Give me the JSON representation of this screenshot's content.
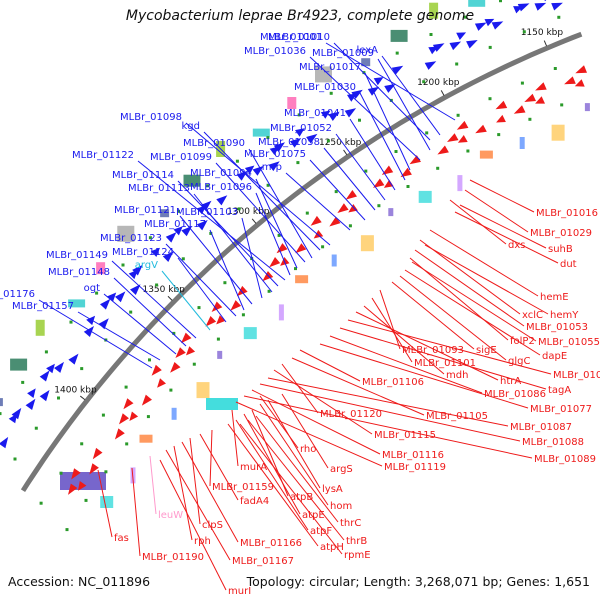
{
  "title": "Mycobacterium leprae Br4923, complete genome",
  "footer": {
    "accession": "Accession: NC_011896",
    "summary": "Topology: circular; Length: 3,268,071 bp; Genes: 1,651"
  },
  "colors": {
    "forward_strand": "#1a1aee",
    "reverse_strand": "#ee1a1a",
    "trna": "#22bbdd",
    "rrna": "#ff99cc",
    "backbone": "#777777",
    "tick": "#2a9a2a"
  },
  "ruler_ticks": [
    "1150 kbp",
    "1200 kbp",
    "1250 kbp",
    "1300 kbp",
    "1350 kbp",
    "1400 kbp"
  ],
  "forward_labels": [
    "MLBr_01001",
    "lexA",
    "MLBr_01010",
    "MLBr_01009",
    "MLBr_01036",
    "MLBr_01017",
    "MLBr_01030",
    "MLBr_01041",
    "MLBr_01052",
    "MLBr_01058",
    "MLBr_01075",
    "mrp",
    "MLBr_01098",
    "kgd",
    "MLBr_01090",
    "MLBr_01099",
    "MLBr_01094",
    "MLBr_01096",
    "MLBr_01122",
    "MLBr_01114",
    "MLBr_01113",
    "MLBr_01103",
    "MLBr_01121",
    "MLBr_01117",
    "MLBr_01123",
    "MLBr_01124",
    "argV",
    "MLBr_01149",
    "MLBr_01148",
    "ogt",
    "MLBr_01176",
    "MLBr_01157"
  ],
  "reverse_labels": [
    "MLBr_01016",
    "MLBr_01029",
    "dxs",
    "suhB",
    "dut",
    "hemE",
    "xclC",
    "hemY",
    "MLBr_01053",
    "folP2",
    "MLBr_01055",
    "dapE",
    "glgC",
    "sigE",
    "MLBr_01093",
    "MLBr_01101",
    "mdh",
    "htrA",
    "MLBr_01064",
    "tagA",
    "MLBr_01086",
    "MLBr_01077",
    "MLBr_01106",
    "MLBr_01105",
    "MLBr_01120",
    "MLBr_01115",
    "MLBr_01087",
    "MLBr_01088",
    "MLBr_01116",
    "MLBr_01089",
    "MLBr_01119",
    "argS",
    "rho",
    "lysA",
    "hom",
    "murA",
    "atpB",
    "thrC",
    "atpE",
    "thrB",
    "atpF",
    "rpmE",
    "atpH",
    "MLBr_01159",
    "fadA4",
    "clpS",
    "MLBr_01166",
    "rph",
    "MLBr_01167",
    "leuW",
    "fas",
    "MLBr_01190",
    "murI"
  ]
}
